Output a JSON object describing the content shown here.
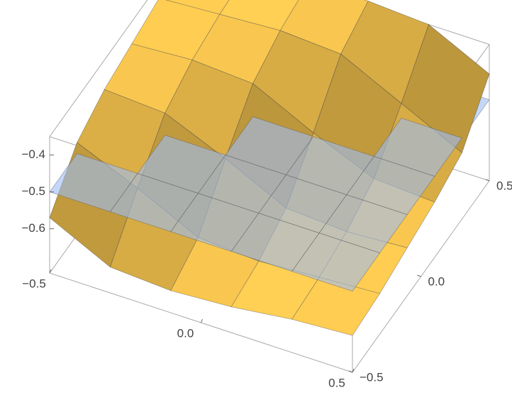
{
  "chart_data": {
    "type": "surface3d",
    "x": [
      -0.5,
      -0.3,
      -0.1,
      0.1,
      0.3,
      0.5
    ],
    "y": [
      -0.5,
      -0.3,
      -0.1,
      0.1,
      0.3,
      0.5
    ],
    "xlim": [
      -0.5,
      0.5
    ],
    "ylim": [
      -0.5,
      0.5
    ],
    "zlim": [
      -0.72,
      -0.35
    ],
    "xticks": [
      {
        "value": -0.5,
        "label": "−0.5"
      },
      {
        "value": 0,
        "label": "0.0"
      },
      {
        "value": 0.5,
        "label": "0.5"
      }
    ],
    "yticks": [
      {
        "value": -0.5,
        "label": "−0.5"
      },
      {
        "value": 0,
        "label": "0.0"
      },
      {
        "value": 0.5,
        "label": "0.5"
      }
    ],
    "zticks": [
      {
        "value": -0.6,
        "label": "−0.6"
      },
      {
        "value": -0.5,
        "label": "−0.5"
      },
      {
        "value": -0.4,
        "label": "−0.4"
      }
    ],
    "grid": false,
    "series": [
      {
        "color": "#f9c74f",
        "opacity": 1,
        "z": [
          [
            -0.57,
            -0.65,
            -0.66,
            -0.65,
            -0.63,
            -0.62
          ],
          [
            -0.47,
            -0.54,
            -0.62,
            -0.63,
            -0.62,
            -0.61
          ],
          [
            -0.43,
            -0.44,
            -0.51,
            -0.59,
            -0.6,
            -0.59
          ],
          [
            -0.41,
            -0.4,
            -0.41,
            -0.49,
            -0.56,
            -0.57
          ],
          [
            -0.39,
            -0.38,
            -0.37,
            -0.38,
            -0.46,
            -0.54
          ],
          [
            -0.38,
            -0.37,
            -0.35,
            -0.34,
            -0.35,
            -0.43
          ]
        ]
      },
      {
        "color": "#9dbcf5",
        "opacity": 0.6,
        "z": [
          [
            -0.5,
            -0.5,
            -0.5,
            -0.5,
            -0.5,
            -0.5
          ],
          [
            -0.5,
            -0.5,
            -0.5,
            -0.5,
            -0.5,
            -0.5
          ],
          [
            -0.5,
            -0.5,
            -0.5,
            -0.5,
            -0.5,
            -0.5
          ],
          [
            -0.5,
            -0.5,
            -0.5,
            -0.5,
            -0.5,
            -0.5
          ],
          [
            -0.5,
            -0.5,
            -0.5,
            -0.5,
            -0.5,
            -0.5
          ],
          [
            -0.5,
            -0.5,
            -0.5,
            -0.5,
            -0.5,
            -0.5
          ]
        ]
      }
    ]
  }
}
